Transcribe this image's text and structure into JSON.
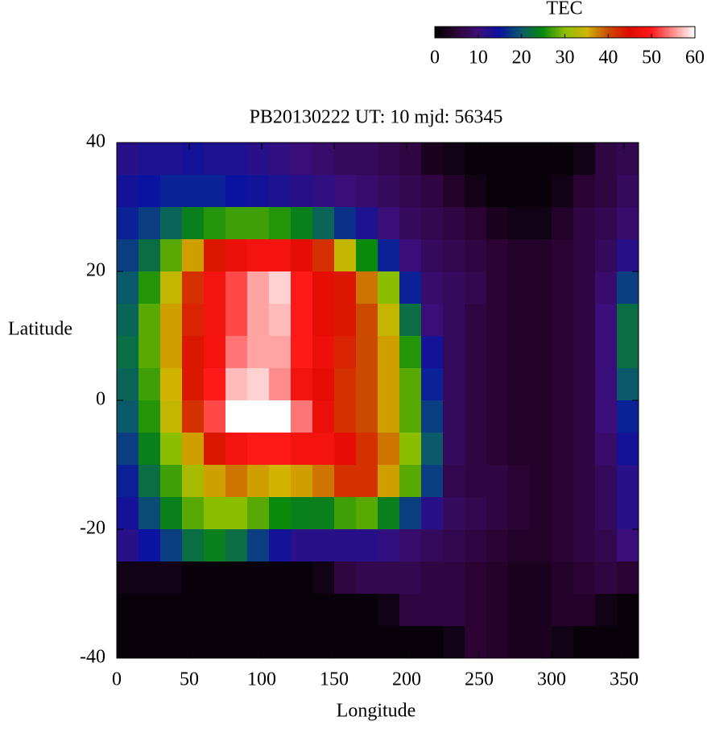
{
  "chart_data": {
    "type": "heatmap",
    "title": "PB20130222  UT: 10  mjd: 56345",
    "x_label": "Longitude",
    "y_label": "Latitude",
    "xlim": [
      0,
      360
    ],
    "ylim": [
      -40,
      40
    ],
    "xticks": [
      0,
      50,
      100,
      150,
      200,
      250,
      300,
      350
    ],
    "yticks": [
      -40,
      -20,
      0,
      20,
      40
    ],
    "x": [
      7.5,
      22.5,
      37.5,
      52.5,
      67.5,
      82.5,
      97.5,
      112.5,
      127.5,
      142.5,
      157.5,
      172.5,
      187.5,
      202.5,
      217.5,
      232.5,
      247.5,
      262.5,
      277.5,
      292.5,
      307.5,
      322.5,
      337.5,
      352.5
    ],
    "y": [
      37.5,
      32.5,
      27.5,
      22.5,
      17.5,
      12.5,
      7.5,
      2.5,
      -2.5,
      -7.5,
      -12.5,
      -17.5,
      -22.5,
      -27.5,
      -32.5,
      -37.5
    ],
    "z": [
      [
        12,
        13,
        13,
        14,
        13,
        13,
        12,
        11,
        10,
        9,
        8,
        8,
        7,
        6,
        3,
        2,
        1,
        1,
        1,
        1,
        1,
        2,
        6,
        7
      ],
      [
        14,
        15,
        16,
        16,
        16,
        15,
        14,
        13,
        12,
        11,
        10,
        9,
        8,
        7,
        6,
        4,
        2,
        1,
        1,
        1,
        2,
        5,
        6,
        8
      ],
      [
        16,
        18,
        21,
        24,
        26,
        27,
        27,
        26,
        24,
        21,
        17,
        13,
        10,
        8,
        7,
        6,
        5,
        3,
        2,
        2,
        4,
        6,
        7,
        9
      ],
      [
        18,
        22,
        28,
        36,
        44,
        47,
        48,
        48,
        46,
        42,
        34,
        25,
        16,
        10,
        8,
        7,
        6,
        5,
        4,
        4,
        5,
        6,
        8,
        12
      ],
      [
        20,
        26,
        34,
        42,
        48,
        52,
        56,
        58,
        50,
        46,
        44,
        38,
        30,
        16,
        9,
        8,
        7,
        5,
        4,
        4,
        5,
        6,
        9,
        18
      ],
      [
        21,
        28,
        36,
        43,
        48,
        52,
        56,
        57,
        50,
        46,
        44,
        40,
        34,
        22,
        10,
        8,
        6,
        5,
        4,
        4,
        5,
        6,
        10,
        22
      ],
      [
        22,
        28,
        36,
        44,
        48,
        54,
        56,
        56,
        50,
        47,
        43,
        40,
        36,
        26,
        14,
        8,
        6,
        5,
        4,
        4,
        5,
        6,
        10,
        22
      ],
      [
        21,
        27,
        35,
        44,
        50,
        57,
        58,
        55,
        48,
        46,
        42,
        40,
        36,
        28,
        16,
        8,
        6,
        5,
        4,
        4,
        5,
        6,
        10,
        20
      ],
      [
        20,
        26,
        34,
        42,
        52,
        60,
        60,
        60,
        54,
        47,
        42,
        40,
        36,
        28,
        18,
        8,
        6,
        5,
        4,
        4,
        5,
        6,
        10,
        16
      ],
      [
        18,
        24,
        30,
        36,
        44,
        48,
        50,
        50,
        48,
        48,
        46,
        42,
        38,
        30,
        20,
        8,
        6,
        5,
        4,
        4,
        5,
        6,
        9,
        14
      ],
      [
        16,
        22,
        27,
        32,
        36,
        38,
        36,
        35,
        36,
        38,
        42,
        42,
        36,
        28,
        18,
        7,
        6,
        6,
        5,
        4,
        5,
        6,
        8,
        12
      ],
      [
        14,
        19,
        24,
        28,
        30,
        30,
        28,
        25,
        24,
        24,
        27,
        28,
        24,
        18,
        12,
        8,
        7,
        6,
        5,
        4,
        5,
        6,
        8,
        12
      ],
      [
        12,
        15,
        18,
        22,
        24,
        22,
        18,
        14,
        12,
        12,
        12,
        12,
        11,
        9,
        8,
        7,
        6,
        5,
        4,
        4,
        5,
        6,
        7,
        10
      ],
      [
        2,
        2,
        2,
        1,
        1,
        1,
        1,
        1,
        1,
        2,
        6,
        7,
        7,
        7,
        6,
        6,
        5,
        4,
        3,
        3,
        4,
        5,
        6,
        5
      ],
      [
        1,
        1,
        1,
        1,
        1,
        1,
        1,
        1,
        1,
        1,
        1,
        1,
        2,
        6,
        6,
        6,
        5,
        4,
        3,
        3,
        4,
        4,
        2,
        1
      ],
      [
        1,
        1,
        1,
        1,
        1,
        1,
        1,
        1,
        1,
        1,
        1,
        1,
        1,
        1,
        1,
        2,
        5,
        4,
        3,
        3,
        2,
        1,
        1,
        1
      ]
    ],
    "colormap": [
      "#000000",
      "#2c0434",
      "#3a0e78",
      "#0a14a0",
      "#0a5a6a",
      "#0a8a0a",
      "#8cbe00",
      "#d0b400",
      "#cc4a00",
      "#e00a00",
      "#ff1a1a",
      "#ff8c8c",
      "#ffffff"
    ],
    "colorbar": {
      "label": "TEC",
      "lim": [
        0,
        60
      ],
      "ticks": [
        0,
        10,
        20,
        30,
        40,
        50,
        60
      ]
    }
  }
}
